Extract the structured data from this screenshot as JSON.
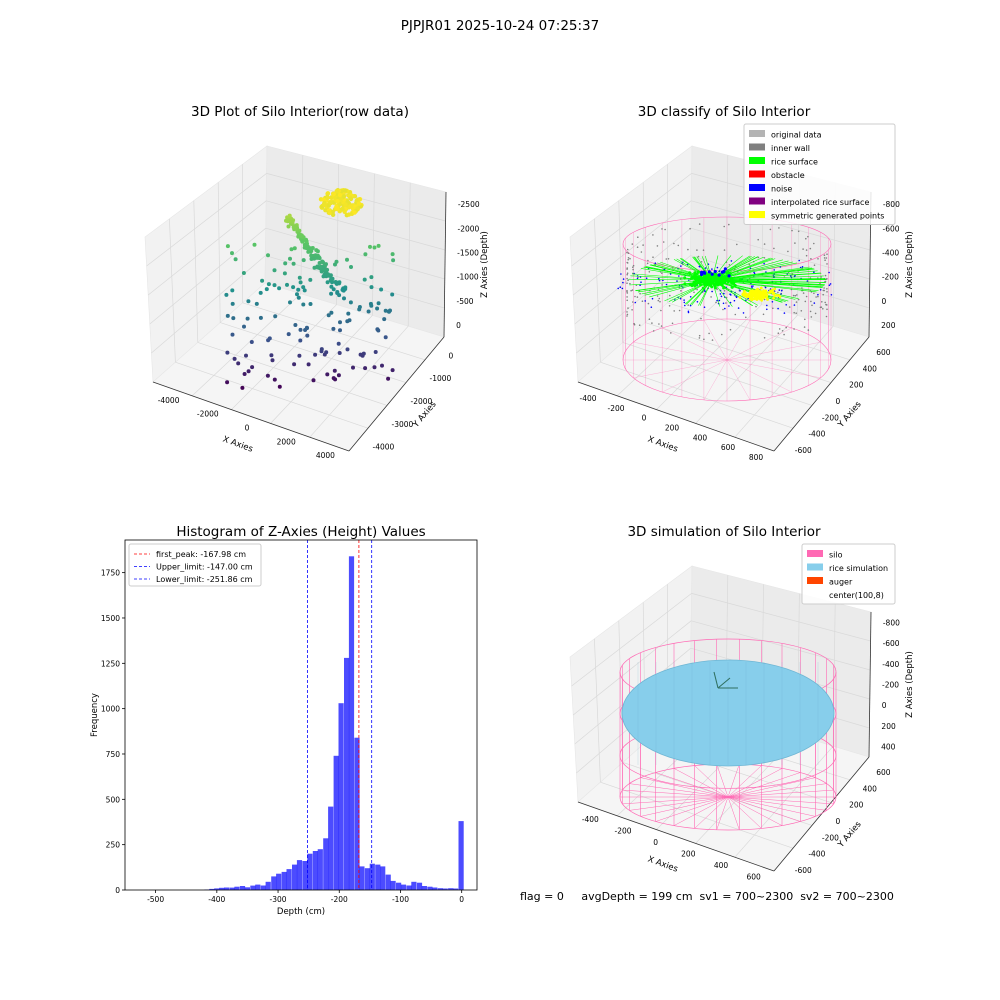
{
  "figure": {
    "suptitle": "PJPJR01 2025-10-24 07:25:37",
    "status_line": "flag = 0     avgDepth = 199 cm  sv1 = 700~2300  sv2 = 700~2300"
  },
  "chart_data": [
    {
      "type": "scatter",
      "title": "3D Plot of Silo Interior(row data)",
      "xlabel": "X Axies",
      "ylabel": "Y Axies",
      "zlabel": "Z Axies (Depth)",
      "x_ticks": [
        -4000,
        -2000,
        0,
        2000,
        4000
      ],
      "y_ticks": [
        -4000,
        -3000,
        -2000,
        -1000,
        0
      ],
      "z_ticks": [
        0,
        -500,
        -1000,
        -1500,
        -2000,
        -2500
      ],
      "xlim": [
        -4500,
        4500
      ],
      "ylim": [
        -4500,
        1000
      ],
      "zlim": [
        -2700,
        100
      ],
      "colormap": "viridis",
      "grid": true
    },
    {
      "type": "scatter",
      "title": "3D classify of Silo Interior",
      "xlabel": "X Axies",
      "ylabel": "Y Axies",
      "zlabel": "Z Axies (Depth)",
      "x_ticks": [
        -400,
        -200,
        0,
        200,
        400,
        600,
        800
      ],
      "y_ticks": [
        -600,
        -400,
        -200,
        0,
        200,
        400,
        600
      ],
      "z_ticks": [
        200,
        0,
        -200,
        -400,
        -600,
        -800
      ],
      "legend_position": "top-right",
      "legend": [
        {
          "label": "original data",
          "color": "#b4b4b4"
        },
        {
          "label": "inner wall",
          "color": "#808080"
        },
        {
          "label": "rice surface",
          "color": "#00ff00"
        },
        {
          "label": "obstacle",
          "color": "#ff0000"
        },
        {
          "label": "noise",
          "color": "#0000ff"
        },
        {
          "label": "interpolated rice surface",
          "color": "#800080"
        },
        {
          "label": "symmetric generated points",
          "color": "#ffff00"
        }
      ],
      "cylinder_color": "#ff69b4",
      "grid": true
    },
    {
      "type": "bar",
      "title": "Histogram of Z-Axies (Height) Values",
      "xlabel": "Depth (cm)",
      "ylabel": "Frequency",
      "x_ticks": [
        -500,
        -400,
        -300,
        -200,
        -100,
        0
      ],
      "y_ticks": [
        0,
        250,
        500,
        750,
        1000,
        1250,
        1500,
        1750
      ],
      "xlim": [
        -550,
        25
      ],
      "ylim": [
        0,
        1930
      ],
      "bar_color": "#0000ff",
      "bin_width": 8.5,
      "bins": [
        {
          "x": -416,
          "y": 3
        },
        {
          "x": -408,
          "y": 6
        },
        {
          "x": -400,
          "y": 9
        },
        {
          "x": -392,
          "y": 12
        },
        {
          "x": -384,
          "y": 14
        },
        {
          "x": -375,
          "y": 13
        },
        {
          "x": -367,
          "y": 18
        },
        {
          "x": -358,
          "y": 22
        },
        {
          "x": -350,
          "y": 15
        },
        {
          "x": -341,
          "y": 24
        },
        {
          "x": -333,
          "y": 30
        },
        {
          "x": -324,
          "y": 25
        },
        {
          "x": -316,
          "y": 45
        },
        {
          "x": -307,
          "y": 75
        },
        {
          "x": -299,
          "y": 90
        },
        {
          "x": -290,
          "y": 100
        },
        {
          "x": -282,
          "y": 115
        },
        {
          "x": -273,
          "y": 140
        },
        {
          "x": -265,
          "y": 165
        },
        {
          "x": -256,
          "y": 160
        },
        {
          "x": -248,
          "y": 200
        },
        {
          "x": -239,
          "y": 215
        },
        {
          "x": -231,
          "y": 225
        },
        {
          "x": -222,
          "y": 285
        },
        {
          "x": -214,
          "y": 460
        },
        {
          "x": -205,
          "y": 740
        },
        {
          "x": -197,
          "y": 1030
        },
        {
          "x": -188,
          "y": 1280
        },
        {
          "x": -180,
          "y": 1840
        },
        {
          "x": -171,
          "y": 840
        },
        {
          "x": -163,
          "y": 130
        },
        {
          "x": -154,
          "y": 120
        },
        {
          "x": -146,
          "y": 145
        },
        {
          "x": -137,
          "y": 140
        },
        {
          "x": -129,
          "y": 130
        },
        {
          "x": -120,
          "y": 85
        },
        {
          "x": -112,
          "y": 50
        },
        {
          "x": -103,
          "y": 40
        },
        {
          "x": -95,
          "y": 30
        },
        {
          "x": -86,
          "y": 25
        },
        {
          "x": -78,
          "y": 45
        },
        {
          "x": -69,
          "y": 40
        },
        {
          "x": -61,
          "y": 22
        },
        {
          "x": -52,
          "y": 18
        },
        {
          "x": -44,
          "y": 14
        },
        {
          "x": -35,
          "y": 10
        },
        {
          "x": -27,
          "y": 8
        },
        {
          "x": -18,
          "y": 10
        },
        {
          "x": -10,
          "y": 8
        },
        {
          "x": -1,
          "y": 380
        }
      ],
      "lines": [
        {
          "label": "first_peak: -167.98 cm",
          "x": -167.98,
          "color": "#ff0000"
        },
        {
          "label": "Upper_limit: -147.00 cm",
          "x": -147.0,
          "color": "#0000ff"
        },
        {
          "label": "Lower_limit: -251.86 cm",
          "x": -251.86,
          "color": "#0000ff"
        }
      ],
      "legend_position": "top-left"
    },
    {
      "type": "scatter",
      "title": "3D simulation of Silo Interior",
      "xlabel": "X Axies",
      "ylabel": "Y Axies",
      "zlabel": "Z Axies (Depth)",
      "x_ticks": [
        -400,
        -200,
        0,
        200,
        400,
        600
      ],
      "y_ticks": [
        -600,
        -400,
        -200,
        0,
        200,
        400,
        600
      ],
      "z_ticks": [
        400,
        200,
        0,
        -200,
        -400,
        -600,
        -800
      ],
      "legend_position": "top-right",
      "legend": [
        {
          "label": "silo",
          "color": "#ff69b4"
        },
        {
          "label": "rice simulation",
          "color": "#87ceeb"
        },
        {
          "label": "auger",
          "color": "#ff4500"
        },
        {
          "label": "center(100,8)",
          "color": ""
        }
      ],
      "grid": true
    }
  ]
}
